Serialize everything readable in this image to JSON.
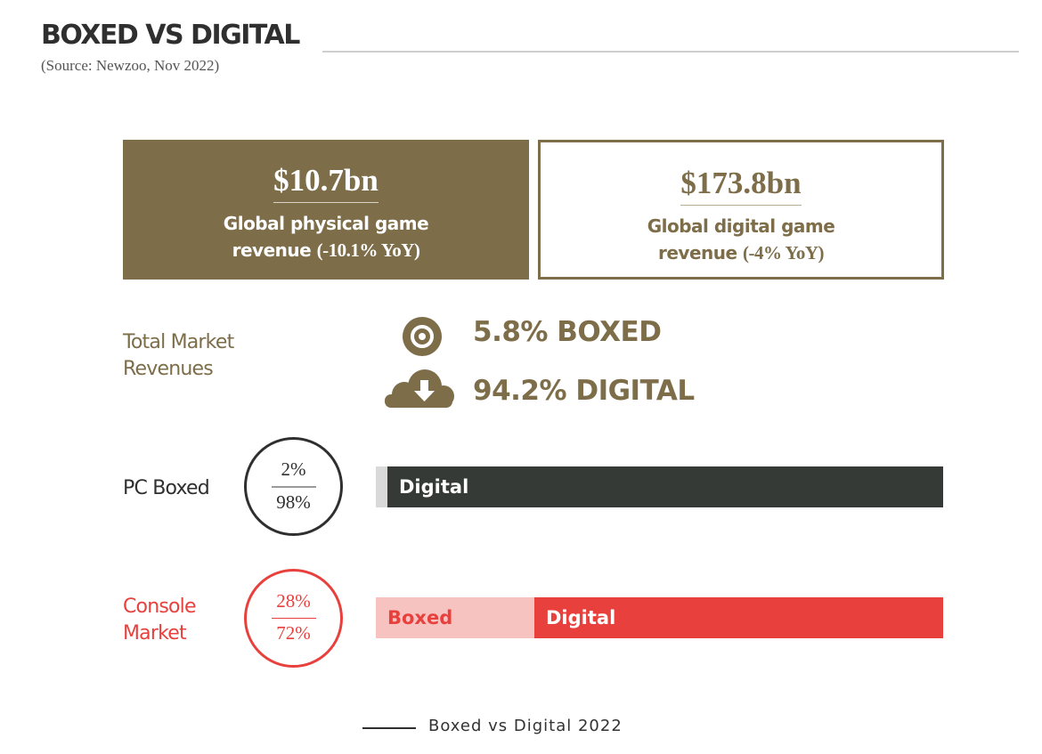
{
  "header": {
    "title": "BOXED VS DIGITAL",
    "source": "(Source: Newzoo, Nov 2022)"
  },
  "cards": {
    "physical": {
      "amount": "$10.7bn",
      "line1": "Global physical game",
      "line2": "revenue",
      "yoy": "(-10.1% YoY)"
    },
    "digital": {
      "amount": "$173.8bn",
      "line1": "Global digital game",
      "line2": "revenue",
      "yoy": "(-4% YoY)"
    }
  },
  "total_market": {
    "label_line1": "Total Market",
    "label_line2": "Revenues",
    "boxed_text": "5.8% BOXED",
    "digital_text": "94.2% DIGITAL",
    "boxed_icon": "disc-icon",
    "digital_icon": "cloud-download-icon"
  },
  "colors": {
    "brand": "#7d6d49",
    "pc_dark": "#353a37",
    "pc_light": "#d9d9d9",
    "console_red": "#e8413d",
    "console_pink": "#f7c3c1"
  },
  "chart_data": [
    {
      "type": "bar",
      "title": "PC Boxed",
      "categories": [
        "Boxed",
        "Digital"
      ],
      "values": [
        2,
        98
      ],
      "unit": "%",
      "circle_top": "2%",
      "circle_bottom": "98%",
      "segment_labels": [
        "",
        "Digital"
      ]
    },
    {
      "type": "bar",
      "title_line1": "Console",
      "title_line2": "Market",
      "categories": [
        "Boxed",
        "Digital"
      ],
      "values": [
        28,
        72
      ],
      "unit": "%",
      "circle_top": "28%",
      "circle_bottom": "72%",
      "segment_labels": [
        "Boxed",
        "Digital"
      ]
    }
  ],
  "caption": "Boxed vs Digital 2022"
}
